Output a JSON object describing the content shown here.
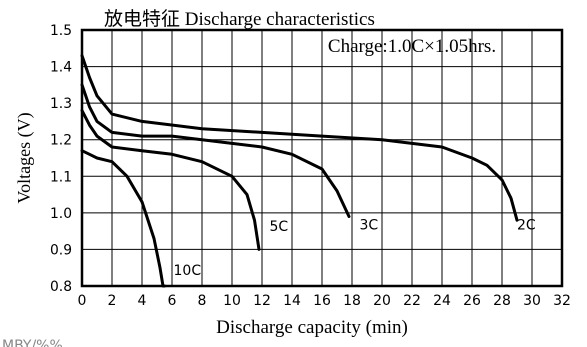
{
  "chart_data": {
    "type": "line",
    "title": "放电特征 Discharge characteristics",
    "annotation": "Charge:1.0C×1.05hrs.",
    "xlabel": "Discharge capacity (min)",
    "ylabel": "Voltages (V)",
    "footer_text": "MBY/%%",
    "xlim": [
      0,
      32
    ],
    "ylim": [
      0.8,
      1.5
    ],
    "x_ticks": [
      0,
      2,
      4,
      6,
      8,
      10,
      12,
      14,
      16,
      18,
      20,
      22,
      24,
      26,
      28,
      30,
      32
    ],
    "y_ticks": [
      0.8,
      0.9,
      1.0,
      1.1,
      1.2,
      1.3,
      1.4,
      1.5
    ],
    "grid": true,
    "series": [
      {
        "name": "10C",
        "x": [
          0,
          0.5,
          1,
          2,
          3,
          4,
          4.8,
          5.2,
          5.4,
          5.5
        ],
        "y": [
          1.17,
          1.16,
          1.15,
          1.14,
          1.1,
          1.03,
          0.93,
          0.85,
          0.8,
          0.8
        ]
      },
      {
        "name": "5C",
        "x": [
          0,
          0.5,
          1,
          2,
          4,
          6,
          8,
          10,
          11,
          11.5,
          11.8
        ],
        "y": [
          1.28,
          1.24,
          1.21,
          1.18,
          1.17,
          1.16,
          1.14,
          1.1,
          1.05,
          0.98,
          0.9
        ]
      },
      {
        "name": "3C",
        "x": [
          0,
          0.5,
          1,
          2,
          4,
          6,
          8,
          10,
          12,
          14,
          16,
          17,
          17.8
        ],
        "y": [
          1.35,
          1.29,
          1.25,
          1.22,
          1.21,
          1.21,
          1.2,
          1.19,
          1.18,
          1.16,
          1.12,
          1.06,
          0.99
        ]
      },
      {
        "name": "2C",
        "x": [
          0,
          0.5,
          1,
          2,
          4,
          8,
          12,
          16,
          20,
          24,
          26,
          27,
          28,
          28.6,
          29.0
        ],
        "y": [
          1.43,
          1.37,
          1.32,
          1.27,
          1.25,
          1.23,
          1.22,
          1.21,
          1.2,
          1.18,
          1.15,
          1.13,
          1.09,
          1.04,
          0.98
        ]
      }
    ],
    "series_label_positions": [
      {
        "x": 6.1,
        "y": 0.83
      },
      {
        "x": 12.5,
        "y": 0.95
      },
      {
        "x": 18.5,
        "y": 0.955
      },
      {
        "x": 29.0,
        "y": 0.955
      }
    ],
    "annotation_position": {
      "x": 22,
      "y": 1.44
    }
  }
}
